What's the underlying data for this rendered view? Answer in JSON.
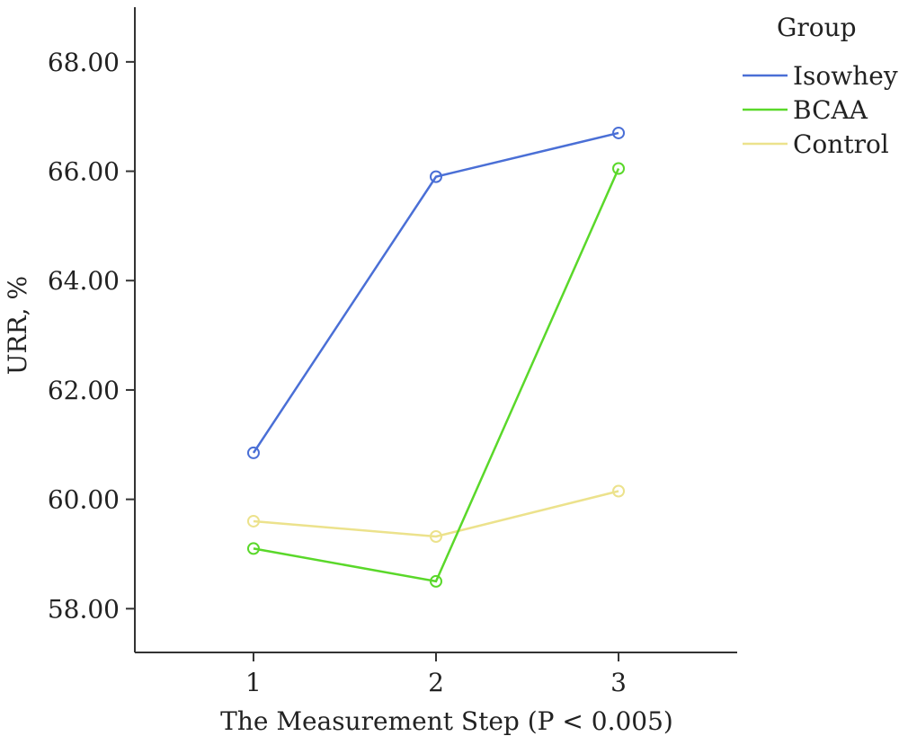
{
  "chart_data": {
    "type": "line",
    "x": [
      1,
      2,
      3
    ],
    "x_tick_labels": [
      "1",
      "2",
      "3"
    ],
    "xlabel": "The Measurement Step (P < 0.005)",
    "ylabel": "URR, %",
    "ylim": [
      57.2,
      69.0
    ],
    "xlim": [
      0.35,
      3.65
    ],
    "y_ticks": [
      58,
      60,
      62,
      64,
      66,
      68
    ],
    "y_tick_labels": [
      "58.00",
      "60.00",
      "62.00",
      "64.00",
      "66.00",
      "68.00"
    ],
    "grid": false,
    "marker": "open-circle",
    "legend": {
      "title": "Group",
      "placement": "top-right-outside"
    },
    "series": [
      {
        "name": "Isowhey",
        "color": "#4a6fd6",
        "values": [
          60.85,
          65.9,
          66.7
        ]
      },
      {
        "name": "BCAA",
        "color": "#5ad82a",
        "values": [
          59.1,
          58.5,
          66.05
        ]
      },
      {
        "name": "Control",
        "color": "#ece28c",
        "values": [
          59.6,
          59.32,
          60.15
        ]
      }
    ]
  }
}
